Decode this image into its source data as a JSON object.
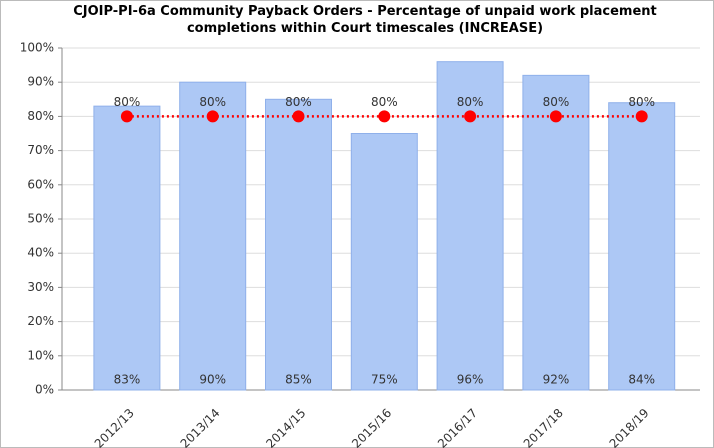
{
  "chart_data": {
    "type": "bar",
    "title": "CJOIP-PI-6a Community Payback Orders - Percentage of unpaid work placement completions within Court timescales (INCREASE)",
    "categories": [
      "2012/13",
      "2013/14",
      "2014/15",
      "2015/16",
      "2016/17",
      "2017/18",
      "2018/19"
    ],
    "series": [
      {
        "type": "bar",
        "color": "#adc8f5",
        "values": [
          83,
          90,
          85,
          75,
          96,
          92,
          84
        ],
        "value_labels": [
          "83%",
          "90%",
          "85%",
          "75%",
          "96%",
          "92%",
          "84%"
        ]
      },
      {
        "type": "line",
        "color": "#ff0000",
        "values": [
          80,
          80,
          80,
          80,
          80,
          80,
          80
        ],
        "value_labels": [
          "80%",
          "80%",
          "80%",
          "80%",
          "80%",
          "80%",
          "80%"
        ]
      }
    ],
    "ylim": [
      0,
      100
    ],
    "yticks": [
      {
        "value": 0,
        "label": "0%"
      },
      {
        "value": 10,
        "label": "10%"
      },
      {
        "value": 20,
        "label": "20%"
      },
      {
        "value": 30,
        "label": "30%"
      },
      {
        "value": 40,
        "label": "40%"
      },
      {
        "value": 50,
        "label": "50%"
      },
      {
        "value": 60,
        "label": "60%"
      },
      {
        "value": 70,
        "label": "70%"
      },
      {
        "value": 80,
        "label": "80%"
      },
      {
        "value": 90,
        "label": "90%"
      },
      {
        "value": 100,
        "label": "100%"
      }
    ],
    "grid": true
  }
}
